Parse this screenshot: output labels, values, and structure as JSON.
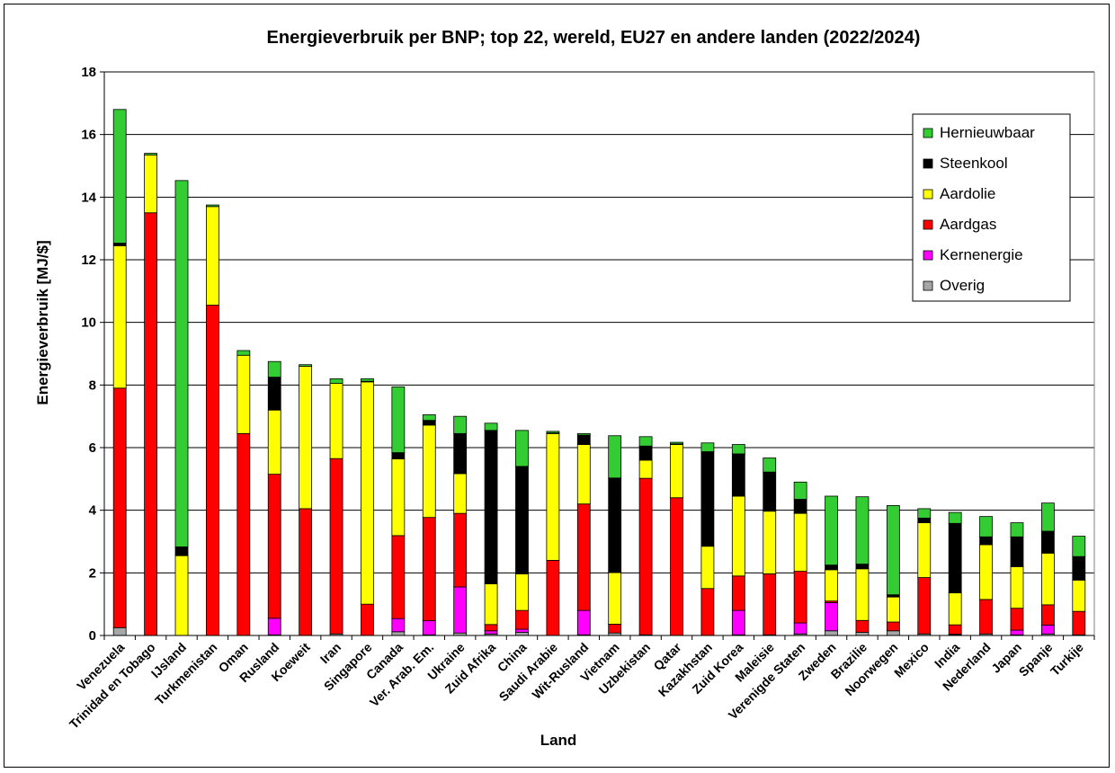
{
  "chart_data": {
    "type": "bar",
    "stacked": true,
    "title": "Energieverbruik per BNP; top 22,  wereld, EU27 en andere landen (2022/2024)",
    "xlabel": "Land",
    "ylabel": "Energieverbruik [MJ/$]",
    "ylim": [
      0,
      18
    ],
    "yticks": [
      0,
      2,
      4,
      6,
      8,
      10,
      12,
      14,
      16,
      18
    ],
    "grid": true,
    "legend_position": "top-right",
    "categories": [
      "Venezuela",
      "Trinidad en Tobago",
      "IJsland",
      "Turkmenistan",
      "Oman",
      "Rusland",
      "Koeweit",
      "Iran",
      "Singapore",
      "Canada",
      "Ver. Arab. Em.",
      "Ukraine",
      "Zuid Afrika",
      "China",
      "Saudi Arabie",
      "Wit-Rusland",
      "Vietnam",
      "Uzbekistan",
      "Qatar",
      "Kazakhstan",
      "Zuid Korea",
      "Maleisie",
      "Verenigde Staten",
      "Zweden",
      "Brazilie",
      "Noorwegen",
      "Mexico",
      "India",
      "Nederland",
      "Japan",
      "Spanje",
      "Turkije"
    ],
    "series": [
      {
        "name": "Overig",
        "color": "#a6a6a6",
        "values": [
          0.25,
          0.0,
          0.0,
          0.0,
          0.0,
          0.02,
          0.0,
          0.05,
          0.0,
          0.12,
          0.02,
          0.08,
          0.05,
          0.1,
          0.0,
          0.02,
          0.08,
          0.02,
          0.0,
          0.0,
          0.02,
          0.02,
          0.05,
          0.15,
          0.1,
          0.15,
          0.05,
          0.02,
          0.05,
          0.02,
          0.05,
          0.02
        ]
      },
      {
        "name": "Kernenergie",
        "color": "#ff00ff",
        "values": [
          0.0,
          0.0,
          0.0,
          0.0,
          0.0,
          0.53,
          0.0,
          0.0,
          0.0,
          0.42,
          0.45,
          1.47,
          0.1,
          0.1,
          0.0,
          0.78,
          0.0,
          0.0,
          0.0,
          0.0,
          0.78,
          0.0,
          0.35,
          0.9,
          0.0,
          0.0,
          0.0,
          0.02,
          0.0,
          0.15,
          0.28,
          0.0
        ]
      },
      {
        "name": "Aardgas",
        "color": "#ff0000",
        "values": [
          7.65,
          13.5,
          0.0,
          10.55,
          6.45,
          4.6,
          4.05,
          5.6,
          1.0,
          2.65,
          3.3,
          2.35,
          0.2,
          0.6,
          2.4,
          3.4,
          0.28,
          5.0,
          4.4,
          1.5,
          1.1,
          1.95,
          1.65,
          0.05,
          0.38,
          0.28,
          1.8,
          0.3,
          1.1,
          0.7,
          0.65,
          0.75
        ]
      },
      {
        "name": "Aardolie",
        "color": "#ffff00",
        "values": [
          4.55,
          1.85,
          2.55,
          3.15,
          2.5,
          2.05,
          4.55,
          2.4,
          7.1,
          2.45,
          2.95,
          1.27,
          1.3,
          1.17,
          4.05,
          1.9,
          1.65,
          0.58,
          1.7,
          1.35,
          2.55,
          2.0,
          1.85,
          1.0,
          1.65,
          0.8,
          1.75,
          1.02,
          1.75,
          1.33,
          1.65,
          1.0
        ]
      },
      {
        "name": "Steenkool",
        "color": "#000000",
        "values": [
          0.08,
          0.0,
          0.28,
          0.0,
          0.0,
          1.05,
          0.0,
          0.0,
          0.02,
          0.2,
          0.15,
          1.28,
          4.9,
          3.43,
          0.02,
          0.3,
          3.02,
          0.45,
          0.02,
          3.02,
          1.35,
          1.25,
          0.45,
          0.15,
          0.15,
          0.07,
          0.15,
          2.22,
          0.25,
          0.95,
          0.7,
          0.75
        ]
      },
      {
        "name": "Hernieuwbaar",
        "color": "#33cc33",
        "values": [
          4.27,
          0.05,
          11.7,
          0.05,
          0.15,
          0.5,
          0.05,
          0.15,
          0.08,
          2.1,
          0.18,
          0.55,
          0.23,
          1.15,
          0.05,
          0.05,
          1.35,
          0.3,
          0.05,
          0.28,
          0.3,
          0.45,
          0.55,
          2.2,
          2.15,
          2.85,
          0.3,
          0.35,
          0.65,
          0.45,
          0.9,
          0.65
        ]
      }
    ]
  }
}
